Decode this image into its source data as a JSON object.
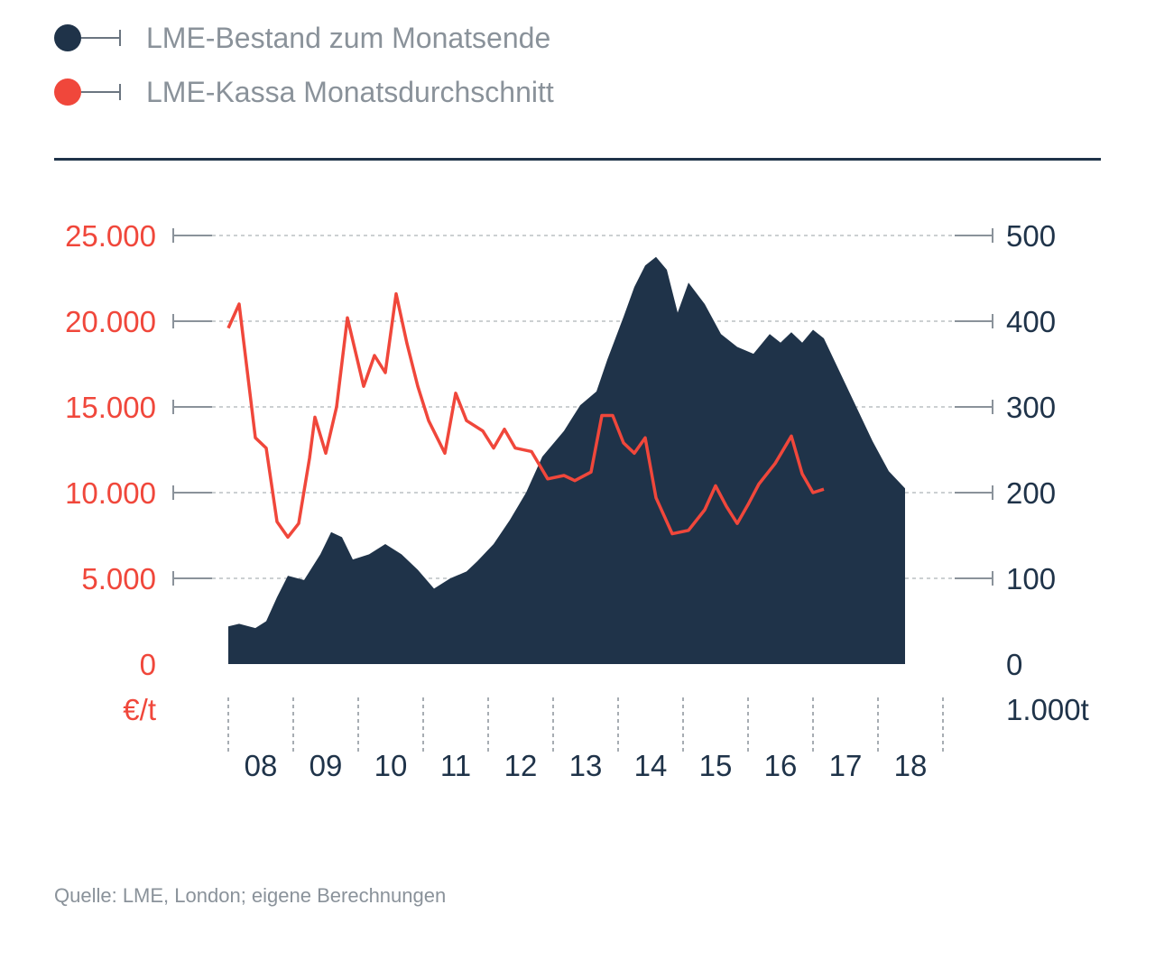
{
  "legend": [
    {
      "label": "LME-Bestand zum Monatsende",
      "color": "#1f3349"
    },
    {
      "label": "LME-Kassa Monatsdurchschnitt",
      "color": "#f0473b"
    }
  ],
  "source": "Quelle: LME, London; eigene Berechnungen",
  "colors": {
    "stock": "#1f3349",
    "price": "#f0473b",
    "axis_right": "#1f3349",
    "axis_left": "#f0473b",
    "grid": "#9aa0a6",
    "ticks": "#8a929a"
  },
  "chart_data": {
    "type": "area+line",
    "x_start": "2008-01",
    "x_end": "2018-12",
    "x_tick_labels": [
      "08",
      "09",
      "10",
      "11",
      "12",
      "13",
      "14",
      "15",
      "16",
      "17",
      "18"
    ],
    "left_axis": {
      "unit": "€/t",
      "ticks": [
        "0",
        "5.000",
        "10.000",
        "15.000",
        "20.000",
        "25.000"
      ],
      "min": 0,
      "max": 25000
    },
    "right_axis": {
      "unit": "1.000t",
      "ticks": [
        "0",
        "100",
        "200",
        "300",
        "400",
        "500"
      ],
      "min": 0,
      "max": 500
    },
    "grid": true,
    "series": [
      {
        "name": "LME-Bestand zum Monatsende",
        "type": "area",
        "axis": "right",
        "points": [
          [
            "2008-01",
            44
          ],
          [
            "2008-03",
            47
          ],
          [
            "2008-06",
            42
          ],
          [
            "2008-08",
            50
          ],
          [
            "2008-10",
            78
          ],
          [
            "2008-12",
            103
          ],
          [
            "2009-03",
            98
          ],
          [
            "2009-06",
            128
          ],
          [
            "2009-08",
            154
          ],
          [
            "2009-10",
            148
          ],
          [
            "2009-12",
            122
          ],
          [
            "2010-03",
            128
          ],
          [
            "2010-06",
            140
          ],
          [
            "2010-09",
            128
          ],
          [
            "2010-12",
            110
          ],
          [
            "2011-03",
            88
          ],
          [
            "2011-06",
            100
          ],
          [
            "2011-09",
            108
          ],
          [
            "2011-11",
            120
          ],
          [
            "2012-02",
            140
          ],
          [
            "2012-05",
            168
          ],
          [
            "2012-08",
            200
          ],
          [
            "2012-11",
            242
          ],
          [
            "2013-03",
            272
          ],
          [
            "2013-06",
            302
          ],
          [
            "2013-09",
            318
          ],
          [
            "2013-11",
            355
          ],
          [
            "2014-02",
            405
          ],
          [
            "2014-04",
            440
          ],
          [
            "2014-06",
            465
          ],
          [
            "2014-08",
            475
          ],
          [
            "2014-10",
            460
          ],
          [
            "2014-12",
            410
          ],
          [
            "2015-02",
            445
          ],
          [
            "2015-05",
            420
          ],
          [
            "2015-08",
            385
          ],
          [
            "2015-11",
            370
          ],
          [
            "2016-02",
            362
          ],
          [
            "2016-05",
            385
          ],
          [
            "2016-07",
            375
          ],
          [
            "2016-09",
            387
          ],
          [
            "2016-11",
            375
          ],
          [
            "2017-01",
            390
          ],
          [
            "2017-03",
            380
          ],
          [
            "2017-06",
            340
          ],
          [
            "2017-09",
            300
          ],
          [
            "2017-12",
            260
          ],
          [
            "2018-03",
            225
          ],
          [
            "2018-06",
            205
          ]
        ]
      },
      {
        "name": "LME-Kassa Monatsdurchschnitt",
        "type": "line",
        "axis": "left",
        "points": [
          [
            "2008-01",
            19600
          ],
          [
            "2008-03",
            21000
          ],
          [
            "2008-06",
            13200
          ],
          [
            "2008-08",
            12600
          ],
          [
            "2008-10",
            8300
          ],
          [
            "2008-12",
            7400
          ],
          [
            "2009-02",
            8200
          ],
          [
            "2009-04",
            12000
          ],
          [
            "2009-05",
            14400
          ],
          [
            "2009-07",
            12300
          ],
          [
            "2009-09",
            15000
          ],
          [
            "2009-11",
            20200
          ],
          [
            "2010-02",
            16200
          ],
          [
            "2010-04",
            18000
          ],
          [
            "2010-06",
            17000
          ],
          [
            "2010-08",
            21600
          ],
          [
            "2010-10",
            18700
          ],
          [
            "2010-12",
            16200
          ],
          [
            "2011-02",
            14200
          ],
          [
            "2011-05",
            12300
          ],
          [
            "2011-07",
            15800
          ],
          [
            "2011-09",
            14200
          ],
          [
            "2011-12",
            13600
          ],
          [
            "2012-02",
            12600
          ],
          [
            "2012-04",
            13700
          ],
          [
            "2012-06",
            12600
          ],
          [
            "2012-09",
            12400
          ],
          [
            "2012-12",
            10800
          ],
          [
            "2013-03",
            11000
          ],
          [
            "2013-05",
            10700
          ],
          [
            "2013-08",
            11200
          ],
          [
            "2013-10",
            14500
          ],
          [
            "2013-12",
            14500
          ],
          [
            "2014-02",
            12900
          ],
          [
            "2014-04",
            12300
          ],
          [
            "2014-06",
            13200
          ],
          [
            "2014-08",
            9700
          ],
          [
            "2014-11",
            7600
          ],
          [
            "2015-02",
            7800
          ],
          [
            "2015-05",
            9000
          ],
          [
            "2015-07",
            10400
          ],
          [
            "2015-09",
            9200
          ],
          [
            "2015-11",
            8200
          ],
          [
            "2016-01",
            9300
          ],
          [
            "2016-03",
            10500
          ],
          [
            "2016-06",
            11700
          ],
          [
            "2016-09",
            13300
          ],
          [
            "2016-11",
            11100
          ],
          [
            "2017-01",
            10000
          ],
          [
            "2017-03",
            10200
          ]
        ]
      }
    ]
  }
}
